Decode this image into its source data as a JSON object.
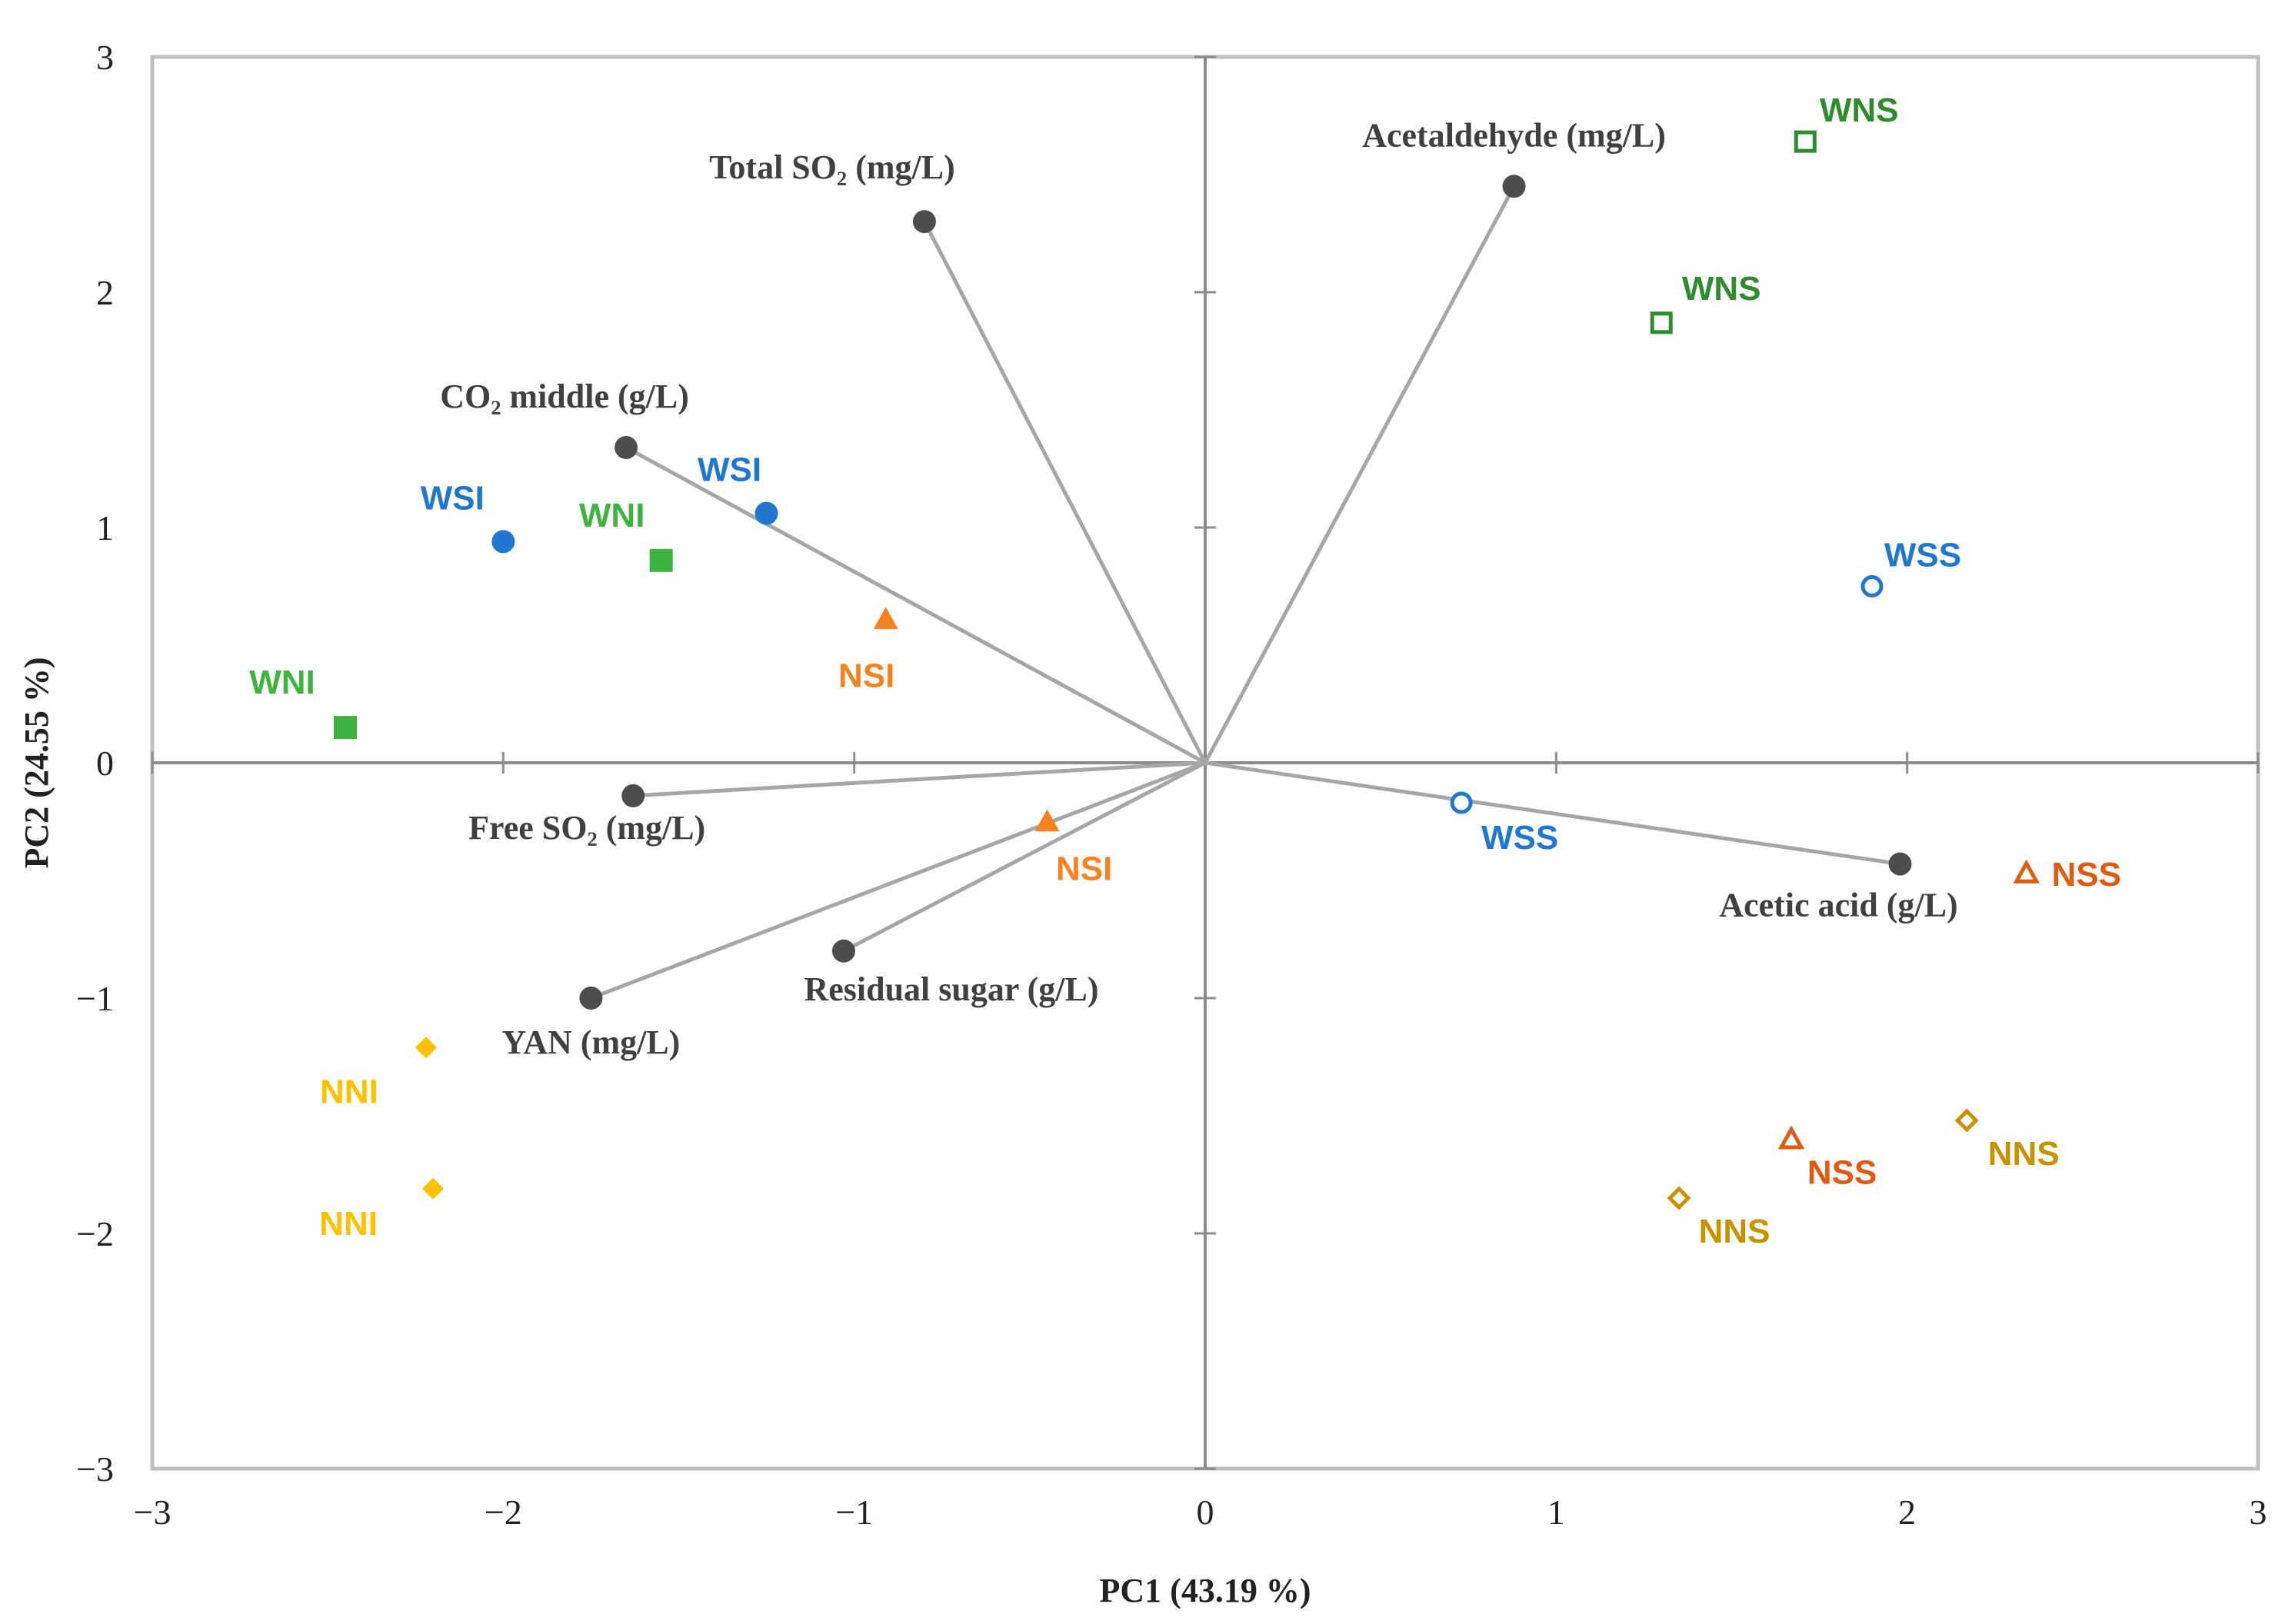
{
  "chart_data": {
    "type": "scatter",
    "subtype": "pca-biplot",
    "title": "",
    "xlabel": "PC1 (43.19 %)",
    "ylabel": "PC2 (24.55 %)",
    "xlim": [
      -3,
      3
    ],
    "ylim": [
      -3,
      3
    ],
    "x_ticks": [
      "−3",
      "−2",
      "−1",
      "0",
      "1",
      "2",
      "3"
    ],
    "y_ticks": [
      "−3",
      "−2",
      "−1",
      "0",
      "1",
      "2",
      "3"
    ],
    "grid": false,
    "colors": {
      "loading": "#4d4d4d",
      "vector": "#a6a6a6",
      "axis": "#8c8c8c",
      "frame": "#bfbfbf",
      "WSI": "#1f77d0",
      "WSS": "#1f77d0",
      "WNI": "#3fb33f",
      "WNS": "#2e8b2e",
      "NSI": "#f5821f",
      "NSS": "#e05a12",
      "NNI": "#ffc000",
      "NNS": "#c79100"
    },
    "loadings": [
      {
        "name": "Total SO₂ (mg/L)",
        "x": -0.8,
        "y": 2.3
      },
      {
        "name": "Acetaldehyde (mg/L)",
        "x": 0.88,
        "y": 2.45
      },
      {
        "name": "CO₂ middle (g/L)",
        "x": -1.65,
        "y": 1.34
      },
      {
        "name": "Free SO₂ (mg/L)",
        "x": -1.63,
        "y": -0.14
      },
      {
        "name": "YAN (mg/L)",
        "x": -1.75,
        "y": -1.0
      },
      {
        "name": "Residual sugar (g/L)",
        "x": -1.03,
        "y": -0.8
      },
      {
        "name": "Acetic acid (g/L)",
        "x": 1.98,
        "y": -0.43
      }
    ],
    "series": [
      {
        "name": "WSI",
        "marker": "circle",
        "filled": true,
        "points": [
          {
            "x": -2.0,
            "y": 0.94
          },
          {
            "x": -1.25,
            "y": 1.06
          }
        ]
      },
      {
        "name": "WNI",
        "marker": "square",
        "filled": true,
        "points": [
          {
            "x": -2.45,
            "y": 0.15
          },
          {
            "x": -1.55,
            "y": 0.86
          }
        ]
      },
      {
        "name": "NSI",
        "marker": "triangle",
        "filled": true,
        "points": [
          {
            "x": -0.91,
            "y": 0.61
          },
          {
            "x": -0.45,
            "y": -0.25
          }
        ]
      },
      {
        "name": "NNI",
        "marker": "diamond",
        "filled": true,
        "points": [
          {
            "x": -2.22,
            "y": -1.21
          },
          {
            "x": -2.2,
            "y": -1.81
          }
        ]
      },
      {
        "name": "WNS",
        "marker": "square",
        "filled": false,
        "points": [
          {
            "x": 1.71,
            "y": 2.64
          },
          {
            "x": 1.3,
            "y": 1.87
          }
        ]
      },
      {
        "name": "WSS",
        "marker": "circle",
        "filled": false,
        "points": [
          {
            "x": 1.9,
            "y": 0.75
          },
          {
            "x": 0.73,
            "y": -0.17
          }
        ]
      },
      {
        "name": "NSS",
        "marker": "triangle",
        "filled": false,
        "points": [
          {
            "x": 2.34,
            "y": -0.47
          },
          {
            "x": 1.67,
            "y": -1.6
          }
        ]
      },
      {
        "name": "NNS",
        "marker": "diamond",
        "filled": false,
        "points": [
          {
            "x": 2.17,
            "y": -1.52
          },
          {
            "x": 1.35,
            "y": -1.85
          }
        ]
      }
    ]
  }
}
